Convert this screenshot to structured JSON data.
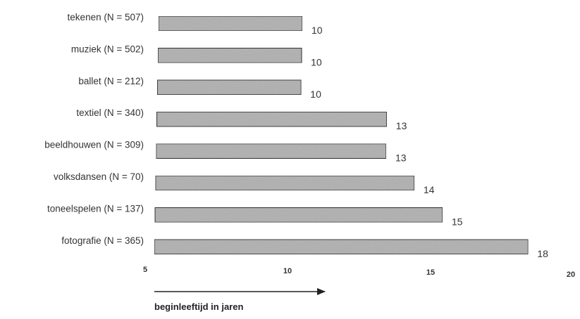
{
  "chart_data": {
    "type": "bar",
    "orientation": "horizontal",
    "title": "",
    "xlabel": "beginleeftijd in jaren",
    "ylabel": "",
    "categories": [
      "tekenen (N = 507)",
      "muziek (N = 502)",
      "ballet (N = 212)",
      "textiel (N = 340)",
      "beeldhouwen (N = 309)",
      "volksdansen (N = 70)",
      "toneelspelen (N = 137)",
      "fotografie (N = 365)"
    ],
    "values": [
      10,
      10,
      10,
      13,
      13,
      14,
      15,
      18
    ],
    "value_labels": [
      "10",
      "10",
      "10",
      "13",
      "13",
      "14",
      "15",
      "18"
    ],
    "xlim": [
      5,
      20
    ],
    "xticks": [
      5,
      10,
      15,
      20
    ],
    "xtick_labels": [
      "5",
      "10",
      "15",
      "20"
    ],
    "grid": false,
    "legend": "none",
    "colors": {
      "bar_fill": "#b8b8b8",
      "bar_stroke": "#3a3a3a",
      "text": "#333333",
      "arrow": "#222222"
    }
  }
}
